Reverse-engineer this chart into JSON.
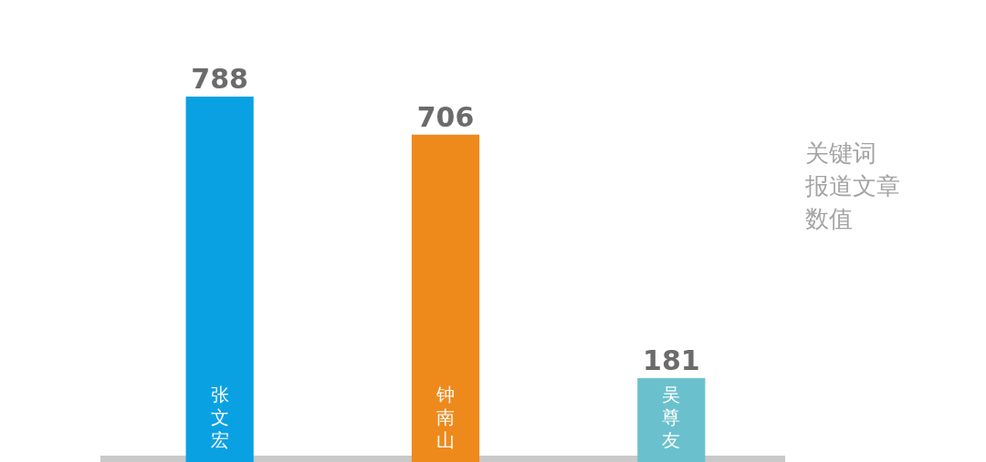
{
  "chart_data": {
    "type": "bar",
    "annotations": [
      "关键词",
      "报道文章",
      "数值"
    ],
    "categories": [
      "张文宏",
      "钟南山",
      "吴尊友"
    ],
    "values": [
      788,
      706,
      181
    ],
    "colors": [
      "#0aa1e2",
      "#ee8a1b",
      "#6ac1cd"
    ],
    "data_labels": true,
    "legend": false
  }
}
